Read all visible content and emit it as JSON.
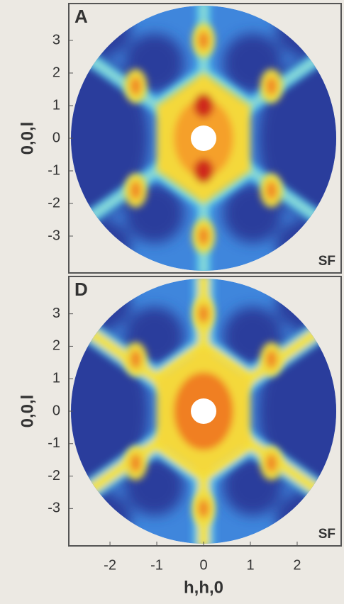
{
  "chart_data": [
    {
      "type": "image",
      "panel_label": "A",
      "annotation": "SF",
      "y_label": "0,0,l",
      "xlim": [
        -2.88,
        2.94
      ],
      "ylim": [
        -4.13,
        4.13
      ],
      "yticks": [
        -3,
        -2,
        -1,
        0,
        1,
        2,
        3
      ],
      "variant": "sharp"
    },
    {
      "type": "image",
      "panel_label": "D",
      "annotation": "SF",
      "y_label": "0,0,l",
      "x_label": "h,h,0",
      "xlim": [
        -2.88,
        2.94
      ],
      "ylim": [
        -4.15,
        4.15
      ],
      "yticks": [
        -3,
        -2,
        -1,
        0,
        1,
        2,
        3
      ],
      "xticks": [
        -2,
        -1,
        0,
        1,
        2
      ],
      "variant": "broad"
    }
  ]
}
